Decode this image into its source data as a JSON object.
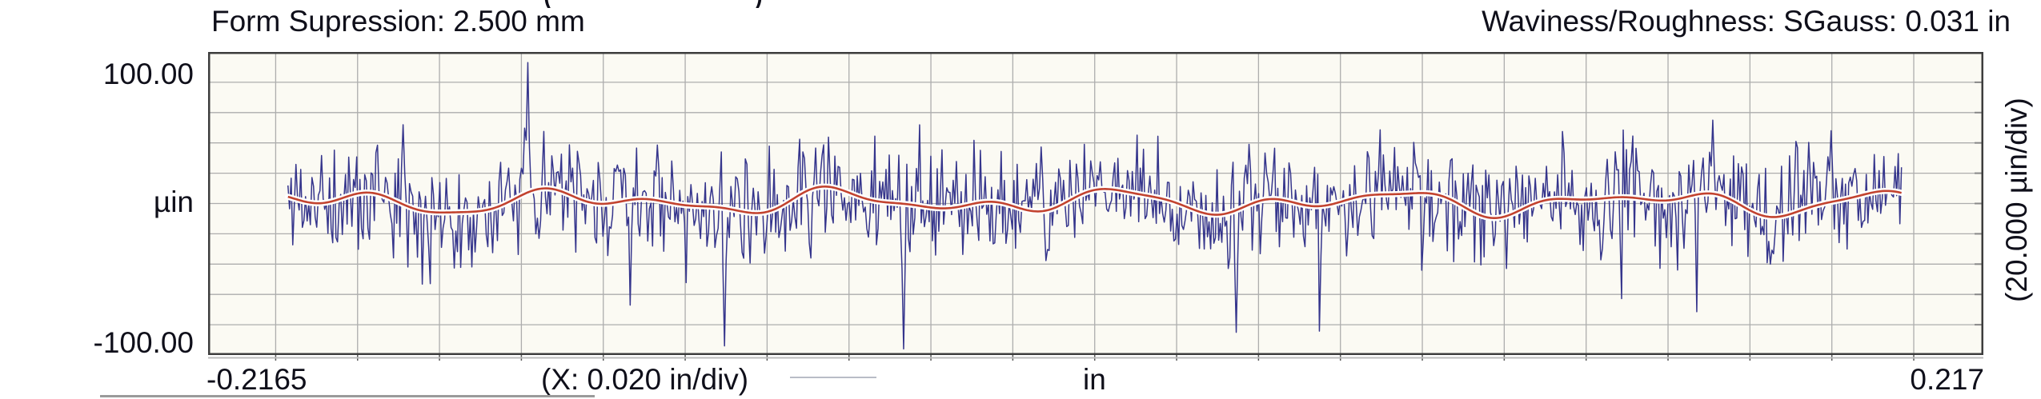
{
  "header": {
    "left_title": "Form Supression: 2.500 mm",
    "right_title": "Waviness/Roughness: SGauss: 0.031 in",
    "cropped_fragment_open": "(",
    "cropped_fragment_close": ")"
  },
  "y_axis_labels": {
    "top": "100.00",
    "unit": "µin",
    "bottom": "-100.00",
    "per_division": "(20.000 µin/div)"
  },
  "x_axis_labels": {
    "left": "-0.2165",
    "per_division": "(X: 0.020 in/div)",
    "unit": "in",
    "right": "0.217"
  },
  "colors": {
    "roughness_trace": "#35358c",
    "waviness_trace": "#c2432f",
    "waviness_halo": "#ffffff",
    "gridline": "#adadad",
    "plot_border": "#3d3d3d",
    "plot_background": "#fbfaf3",
    "text": "#0f0f1a",
    "tick": "#555555",
    "border_shadow": "#bcbcbc"
  },
  "chart_data": {
    "type": "line",
    "title_left": "Form Supression: 2.500 mm",
    "title_right": "Waviness/Roughness: SGauss: 0.031 in",
    "x_axis": {
      "min": -0.2165,
      "max": 0.217,
      "div": 0.02,
      "unit": "in"
    },
    "y_axis": {
      "min": -100,
      "max": 100,
      "div": 20,
      "unit": "µin"
    },
    "grid": true,
    "legend_position": "none",
    "data_x_start": -0.197,
    "data_x_end": 0.197,
    "n_points": 1010,
    "series": [
      {
        "name": "roughness",
        "type": "noise-profile",
        "color": "#35358c",
        "stroke_width": 1.5,
        "seed": 11,
        "std_uin": 18,
        "spike_probability": 0.014,
        "spike_min_uin": 25,
        "spike_max_uin": 58,
        "clamp_uin": 96.5
      },
      {
        "name": "waviness",
        "type": "smooth-profile",
        "color": "#c2432f",
        "stroke_width": 2.6,
        "halo_color": "#ffffff",
        "halo_width": 7.5,
        "offset_uin": 1.0,
        "components": [
          {
            "amp_uin": 5.0,
            "period_in": 0.065,
            "phase": 1.2
          },
          {
            "amp_uin": 4.0,
            "period_in": 0.036,
            "phase": 0.4
          },
          {
            "amp_uin": 2.0,
            "period_in": 0.022,
            "phase": 2.1
          }
        ]
      }
    ],
    "anchor_spikes": [
      {
        "x": -0.169,
        "y": 52
      },
      {
        "x": -0.1383,
        "y": 93
      },
      {
        "x": -0.0904,
        "y": -94
      },
      {
        "x": -0.0468,
        "y": -96
      },
      {
        "x": 0.0346,
        "y": -85
      },
      {
        "x": 0.151,
        "y": 55
      },
      {
        "x": 0.18,
        "y": 48
      }
    ]
  }
}
